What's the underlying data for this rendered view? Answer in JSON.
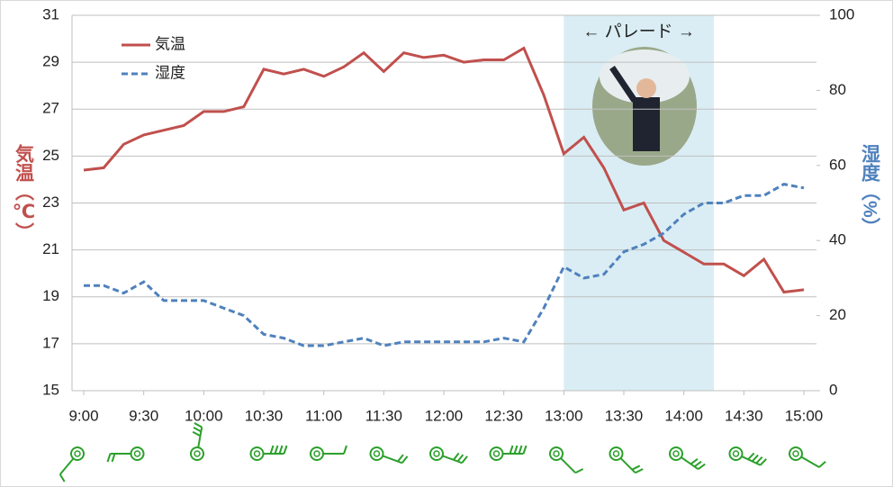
{
  "chart_data": {
    "type": "line",
    "categories": [
      "9:00",
      null,
      null,
      "9:30",
      null,
      null,
      "10:00",
      null,
      null,
      "10:30",
      null,
      null,
      "11:00",
      null,
      null,
      "11:30",
      null,
      null,
      "12:00",
      null,
      null,
      "12:30",
      null,
      null,
      "13:00",
      null,
      null,
      "13:30",
      null,
      null,
      "14:00",
      null,
      null,
      "14:30",
      null,
      null,
      "15:00"
    ],
    "series": [
      {
        "name": "気温",
        "color": "#c0504d",
        "axis": "y",
        "dash": false,
        "values": [
          24.4,
          24.5,
          25.5,
          25.9,
          26.1,
          26.3,
          26.9,
          26.9,
          27.1,
          28.7,
          28.5,
          28.7,
          28.4,
          28.8,
          29.4,
          28.6,
          29.4,
          29.2,
          29.3,
          29.0,
          29.1,
          29.1,
          29.6,
          27.6,
          25.1,
          25.8,
          24.5,
          22.7,
          23.0,
          21.4,
          20.9,
          20.4,
          20.4,
          19.9,
          20.6,
          19.2,
          19.3
        ]
      },
      {
        "name": "湿度",
        "color": "#4f81bd",
        "axis": "y2",
        "dash": true,
        "values": [
          28,
          28,
          26,
          29,
          24,
          24,
          24,
          22,
          20,
          15,
          14,
          12,
          12,
          13,
          14,
          12,
          13,
          13,
          13,
          13,
          13,
          14,
          13,
          22,
          33,
          30,
          31,
          37,
          39,
          42,
          47,
          50,
          50,
          52,
          52,
          55,
          54
        ]
      }
    ],
    "ylabel": "気温（℃）",
    "y2label": "湿度（%）",
    "ylim": [
      15,
      31
    ],
    "yticks": [
      15,
      17,
      19,
      21,
      23,
      25,
      27,
      29,
      31
    ],
    "y2lim": [
      0,
      100
    ],
    "y2ticks": [
      0,
      20,
      40,
      60,
      80,
      100
    ],
    "grid": true,
    "legend": "top-left",
    "annotation": "← パレード →"
  }
}
